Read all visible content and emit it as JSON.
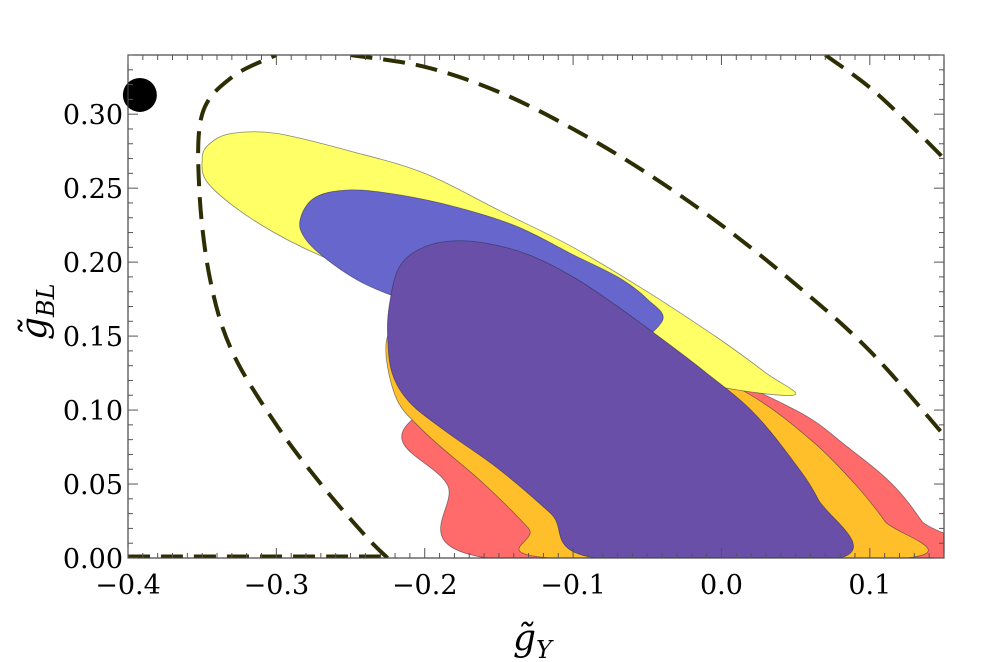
{
  "chart_data": {
    "type": "contour",
    "xlabel": "g̃",
    "xlabel_sub": "Y",
    "ylabel": "g̃",
    "ylabel_sub": "BL",
    "xlim": [
      -0.4,
      0.15
    ],
    "ylim": [
      0.0,
      0.34
    ],
    "x_ticks": [
      -0.4,
      -0.3,
      -0.2,
      -0.1,
      0.0,
      0.1
    ],
    "x_tick_labels": [
      "−0.4",
      "−0.3",
      "−0.2",
      "−0.1",
      "0.0",
      "0.1"
    ],
    "y_ticks": [
      0.0,
      0.05,
      0.1,
      0.15,
      0.2,
      0.25,
      0.3
    ],
    "y_tick_labels": [
      "0.00",
      "0.05",
      "0.10",
      "0.15",
      "0.20",
      "0.25",
      "0.30"
    ],
    "grid": false,
    "colors": {
      "red": "#ff6a6a",
      "orange": "#ffbf2a",
      "yellow": "#ffff66",
      "blue": "#6666cc",
      "purple": "#6a4fa8",
      "dashed": "#2e2e05",
      "marker": "#000000"
    },
    "regions": [
      {
        "color": "red",
        "points": [
          [
            -0.212,
            0.09
          ],
          [
            -0.185,
            0.05
          ],
          [
            -0.158,
            0.0
          ],
          [
            0.15,
            0.0
          ],
          [
            0.135,
            0.025
          ],
          [
            0.115,
            0.05
          ],
          [
            0.085,
            0.075
          ],
          [
            0.05,
            0.1
          ],
          [
            -0.02,
            0.13
          ],
          [
            -0.1,
            0.148
          ]
        ]
      },
      {
        "color": "orange",
        "points": [
          [
            -0.225,
            0.15
          ],
          [
            -0.22,
            0.11
          ],
          [
            -0.2,
            0.085
          ],
          [
            -0.16,
            0.05
          ],
          [
            -0.13,
            0.02
          ],
          [
            -0.115,
            0.0
          ],
          [
            0.125,
            0.0
          ],
          [
            0.11,
            0.025
          ],
          [
            0.09,
            0.05
          ],
          [
            0.06,
            0.08
          ],
          [
            0.02,
            0.11
          ],
          [
            -0.04,
            0.14
          ],
          [
            -0.12,
            0.16
          ],
          [
            -0.2,
            0.165
          ]
        ]
      },
      {
        "color": "yellow",
        "points": [
          [
            -0.35,
            0.27
          ],
          [
            -0.345,
            0.28
          ],
          [
            -0.33,
            0.287
          ],
          [
            -0.3,
            0.287
          ],
          [
            -0.25,
            0.275
          ],
          [
            -0.2,
            0.26
          ],
          [
            -0.15,
            0.235
          ],
          [
            -0.1,
            0.21
          ],
          [
            -0.05,
            0.18
          ],
          [
            0.0,
            0.147
          ],
          [
            0.03,
            0.125
          ],
          [
            0.048,
            0.11
          ],
          [
            -0.02,
            0.12
          ],
          [
            -0.1,
            0.15
          ],
          [
            -0.16,
            0.17
          ],
          [
            -0.2,
            0.18
          ],
          [
            -0.26,
            0.2
          ],
          [
            -0.31,
            0.225
          ],
          [
            -0.345,
            0.252
          ]
        ]
      },
      {
        "color": "blue",
        "points": [
          [
            -0.283,
            0.232
          ],
          [
            -0.275,
            0.243
          ],
          [
            -0.26,
            0.248
          ],
          [
            -0.235,
            0.248
          ],
          [
            -0.19,
            0.24
          ],
          [
            -0.14,
            0.225
          ],
          [
            -0.1,
            0.205
          ],
          [
            -0.07,
            0.19
          ],
          [
            -0.05,
            0.175
          ],
          [
            -0.04,
            0.16
          ],
          [
            -0.07,
            0.14
          ],
          [
            -0.12,
            0.145
          ],
          [
            -0.16,
            0.16
          ],
          [
            -0.2,
            0.17
          ],
          [
            -0.24,
            0.185
          ],
          [
            -0.27,
            0.205
          ],
          [
            -0.283,
            0.22
          ]
        ]
      },
      {
        "color": "purple",
        "points": [
          [
            -0.225,
            0.15
          ],
          [
            -0.224,
            0.17
          ],
          [
            -0.218,
            0.195
          ],
          [
            -0.205,
            0.208
          ],
          [
            -0.185,
            0.214
          ],
          [
            -0.16,
            0.213
          ],
          [
            -0.13,
            0.205
          ],
          [
            -0.1,
            0.19
          ],
          [
            -0.07,
            0.17
          ],
          [
            -0.04,
            0.148
          ],
          [
            -0.01,
            0.125
          ],
          [
            0.02,
            0.1
          ],
          [
            0.045,
            0.07
          ],
          [
            0.065,
            0.04
          ],
          [
            0.08,
            0.0
          ],
          [
            -0.085,
            0.0
          ],
          [
            -0.115,
            0.03
          ],
          [
            -0.15,
            0.06
          ],
          [
            -0.185,
            0.085
          ],
          [
            -0.21,
            0.105
          ],
          [
            -0.222,
            0.125
          ]
        ]
      }
    ],
    "dashed_curves": [
      {
        "points": [
          [
            -0.225,
            0.0
          ],
          [
            -0.24,
            0.015
          ],
          [
            -0.27,
            0.05
          ],
          [
            -0.3,
            0.09
          ],
          [
            -0.33,
            0.14
          ],
          [
            -0.345,
            0.19
          ],
          [
            -0.352,
            0.25
          ],
          [
            -0.35,
            0.3
          ],
          [
            -0.33,
            0.325
          ],
          [
            -0.3,
            0.34
          ]
        ]
      },
      {
        "points": [
          [
            -0.25,
            0.34
          ],
          [
            -0.2,
            0.332
          ],
          [
            -0.15,
            0.315
          ],
          [
            -0.1,
            0.29
          ],
          [
            -0.05,
            0.26
          ],
          [
            0.0,
            0.225
          ],
          [
            0.05,
            0.185
          ],
          [
            0.1,
            0.14
          ],
          [
            0.15,
            0.083
          ]
        ]
      },
      {
        "points": [
          [
            0.07,
            0.34
          ],
          [
            0.1,
            0.318
          ],
          [
            0.13,
            0.29
          ],
          [
            0.15,
            0.27
          ]
        ]
      },
      {
        "points": [
          [
            -0.4,
            0.001
          ],
          [
            -0.225,
            0.001
          ]
        ]
      }
    ],
    "markers": [
      {
        "x": -0.392,
        "y": 0.313
      }
    ]
  }
}
